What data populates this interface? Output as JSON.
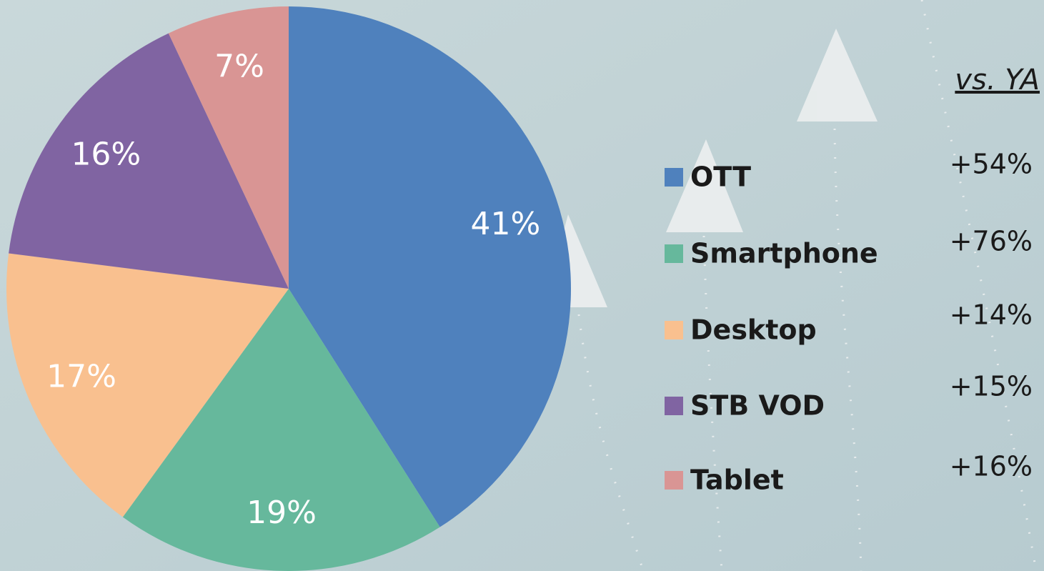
{
  "chart_data": {
    "type": "pie",
    "categories": [
      "OTT",
      "Smartphone",
      "Desktop",
      "STB VOD",
      "Tablet"
    ],
    "values": [
      41,
      19,
      17,
      16,
      7
    ],
    "value_labels": [
      "41%",
      "19%",
      "17%",
      "16%",
      "7%"
    ],
    "colors": [
      "#4f81bd",
      "#66b89c",
      "#f9c08f",
      "#8064a2",
      "#d99594"
    ],
    "comparison": {
      "title": "vs. YA",
      "labels": [
        "+54%",
        "+76%",
        "+14%",
        "+15%",
        "+16%"
      ]
    }
  }
}
